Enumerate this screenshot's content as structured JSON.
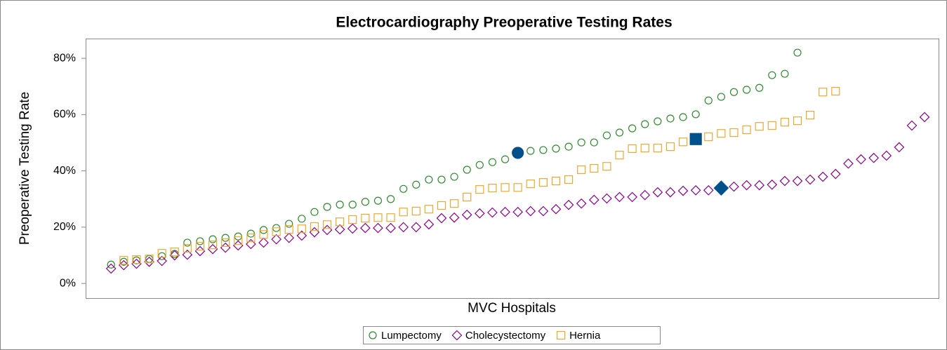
{
  "chart_data": {
    "type": "scatter",
    "title": "Electrocardiography Preoperative Testing Rates",
    "xlabel": "MVC Hospitals",
    "ylabel": "Preoperative Testing Rate",
    "xlim": [
      -1,
      66.1
    ],
    "ylim": [
      -5.2,
      87
    ],
    "yticks": [
      {
        "value": 0,
        "label": "0%"
      },
      {
        "value": 20,
        "label": "20%"
      },
      {
        "value": 40,
        "label": "40%"
      },
      {
        "value": 60,
        "label": "60%"
      },
      {
        "value": 80,
        "label": "80%"
      }
    ],
    "grid": false,
    "legend": "bottom",
    "highlight_color": "#00508c",
    "series": [
      {
        "name": "Lumpectomy",
        "color": "#2e8b2e",
        "marker": "circle",
        "highlight_x": 33,
        "x": [
          1,
          2,
          3,
          4,
          5,
          6,
          7,
          8,
          9,
          10,
          11,
          12,
          13,
          14,
          15,
          16,
          17,
          18,
          19,
          20,
          21,
          22,
          23,
          24,
          25,
          26,
          27,
          28,
          29,
          30,
          31,
          32,
          33,
          34,
          35,
          36,
          37,
          38,
          39,
          40,
          41,
          42,
          43,
          44,
          45,
          46,
          47,
          48,
          49,
          50,
          51,
          52,
          53,
          54,
          55
        ],
        "values": [
          6.7,
          7.7,
          8.2,
          8.7,
          9.7,
          10.5,
          14.5,
          15,
          15.7,
          16.2,
          16.7,
          17.7,
          19,
          19.7,
          21.2,
          23,
          25.4,
          27.2,
          28,
          28,
          29,
          29.4,
          30,
          33.6,
          35.1,
          36.9,
          36.9,
          37.9,
          40.4,
          42.1,
          43.1,
          44.1,
          46.4,
          47.1,
          47.4,
          47.9,
          48.6,
          50.1,
          50.1,
          52.6,
          53.6,
          55.1,
          56.6,
          57.6,
          58.6,
          59.1,
          60.1,
          65,
          66.3,
          68,
          68.8,
          69.5,
          74,
          74.5,
          82
        ]
      },
      {
        "name": "Cholecystectomy",
        "color": "#8b008b",
        "marker": "diamond",
        "highlight_x": 49,
        "x": [
          1,
          2,
          3,
          4,
          5,
          6,
          7,
          8,
          9,
          10,
          11,
          12,
          13,
          14,
          15,
          16,
          17,
          18,
          19,
          20,
          21,
          22,
          23,
          24,
          25,
          26,
          27,
          28,
          29,
          30,
          31,
          32,
          33,
          34,
          35,
          36,
          37,
          38,
          39,
          40,
          41,
          42,
          43,
          44,
          45,
          46,
          47,
          48,
          49,
          50,
          51,
          52,
          53,
          54,
          55,
          56,
          57,
          58,
          59,
          60,
          61,
          62,
          63,
          64,
          65
        ],
        "values": [
          5.3,
          6.5,
          7,
          7.7,
          8,
          10,
          10.2,
          11.5,
          12.2,
          12.7,
          13.5,
          14,
          14.5,
          15.7,
          16.2,
          17,
          18.2,
          19,
          19.2,
          19.5,
          19.7,
          19.7,
          19.7,
          20,
          20,
          21,
          23.2,
          23.4,
          24.4,
          24.9,
          25.2,
          25.4,
          25.4,
          25.7,
          25.7,
          26.4,
          27.9,
          28.4,
          29.7,
          30.2,
          30.7,
          30.7,
          31.4,
          32.4,
          32.4,
          32.9,
          33.1,
          33.1,
          33.9,
          34.4,
          34.9,
          34.9,
          35.1,
          36.4,
          36.4,
          36.9,
          37.9,
          38.9,
          42.6,
          44.1,
          44.6,
          45.4,
          48.4,
          56.1,
          59.1
        ]
      },
      {
        "name": "Hernia",
        "color": "#f0a830",
        "marker": "square",
        "highlight_x": 47,
        "x": [
          2,
          3,
          4,
          5,
          6,
          7,
          8,
          9,
          10,
          11,
          12,
          13,
          14,
          15,
          16,
          17,
          18,
          19,
          20,
          21,
          22,
          23,
          24,
          25,
          26,
          27,
          28,
          29,
          30,
          31,
          32,
          33,
          34,
          35,
          36,
          37,
          38,
          39,
          40,
          41,
          42,
          43,
          44,
          45,
          46,
          47,
          48,
          49,
          50,
          51,
          52,
          53,
          54,
          55,
          56,
          57,
          58
        ],
        "values": [
          8.2,
          8.5,
          8.7,
          10.7,
          11.2,
          12.5,
          13.2,
          13.7,
          14.5,
          15.2,
          16.2,
          17.4,
          18.4,
          19.2,
          19.4,
          20.2,
          20.9,
          21.9,
          22.7,
          23.2,
          23.4,
          23.4,
          25.4,
          25.7,
          26.4,
          27.7,
          28.4,
          30.7,
          33.4,
          33.9,
          34.1,
          34.1,
          35.4,
          35.9,
          36.4,
          36.9,
          40.4,
          40.9,
          41.6,
          45.6,
          47.9,
          48.1,
          48.1,
          48.6,
          50.3,
          51.3,
          52.1,
          53.3,
          53.6,
          54.6,
          55.8,
          56.1,
          57.3,
          57.8,
          59.8,
          68,
          68.3
        ]
      }
    ]
  }
}
